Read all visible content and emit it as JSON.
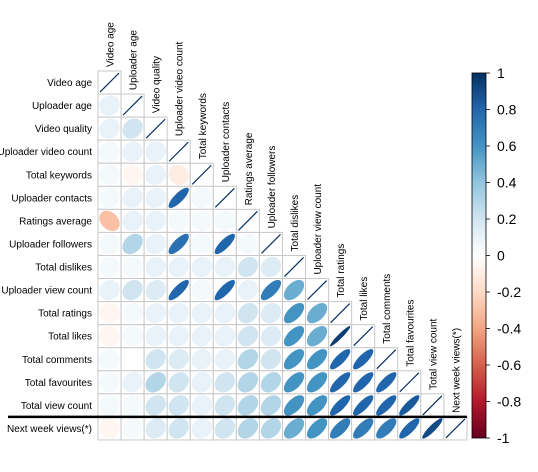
{
  "chart_data": {
    "type": "heatmap",
    "variables": [
      "Video age",
      "Uploader age",
      "Video quality",
      "Uploader video count",
      "Total keywords",
      "Uploader contacts",
      "Ratings average",
      "Uploader followers",
      "Total dislikes",
      "Uploader view count",
      "Total ratings",
      "Total likes",
      "Total comments",
      "Total favourites",
      "Total view count",
      "Next week views(*)"
    ],
    "correlations_lower": [
      [
        1
      ],
      [
        0.1,
        1
      ],
      [
        0.1,
        0.2,
        1
      ],
      [
        0.05,
        0.1,
        0.1,
        1
      ],
      [
        0.05,
        -0.05,
        0.1,
        -0.1,
        1
      ],
      [
        0.05,
        0.1,
        0.1,
        0.8,
        0.05,
        1
      ],
      [
        -0.3,
        0.1,
        0.1,
        0.05,
        0.05,
        0.05,
        1
      ],
      [
        0.05,
        0.3,
        0.1,
        0.75,
        0.05,
        0.8,
        0.05,
        1
      ],
      [
        0.05,
        0.05,
        0.1,
        0.1,
        0.1,
        0.1,
        0.2,
        0.15,
        1
      ],
      [
        0.1,
        0.2,
        0.15,
        0.8,
        0.05,
        0.8,
        0.1,
        0.7,
        0.5,
        1
      ],
      [
        -0.05,
        0.05,
        0.1,
        0.1,
        0.1,
        0.1,
        0.2,
        0.15,
        0.6,
        0.5,
        1
      ],
      [
        -0.05,
        0.05,
        0.1,
        0.1,
        0.1,
        0.1,
        0.2,
        0.15,
        0.6,
        0.5,
        0.95,
        1
      ],
      [
        0.05,
        0.0,
        0.2,
        0.15,
        0.1,
        0.1,
        0.3,
        0.2,
        0.6,
        0.6,
        0.8,
        0.8,
        1
      ],
      [
        0.05,
        0.1,
        0.3,
        0.2,
        0.1,
        0.2,
        0.3,
        0.3,
        0.6,
        0.6,
        0.8,
        0.8,
        0.8,
        1
      ],
      [
        0.05,
        0.05,
        0.2,
        0.2,
        0.1,
        0.2,
        0.3,
        0.3,
        0.6,
        0.6,
        0.8,
        0.8,
        0.8,
        0.85,
        1
      ],
      [
        -0.05,
        0.05,
        0.15,
        0.2,
        0.1,
        0.2,
        0.3,
        0.3,
        0.5,
        0.6,
        0.7,
        0.7,
        0.7,
        0.8,
        0.9,
        1
      ]
    ],
    "colorbar": {
      "range": [
        -1,
        1
      ],
      "ticks": [
        "1",
        "0.8",
        "0.6",
        "0.4",
        "0.2",
        "0",
        "-0.2",
        "-0.4",
        "-0.6",
        "-0.8",
        "-1"
      ],
      "stops": [
        "#67001F",
        "#B2182B",
        "#D6604D",
        "#F4A582",
        "#FDDBC7",
        "#FFFFFF",
        "#D1E5F0",
        "#92C5DE",
        "#4393C3",
        "#2166AC",
        "#053061"
      ]
    },
    "separator_before": "Next week views(*)"
  }
}
